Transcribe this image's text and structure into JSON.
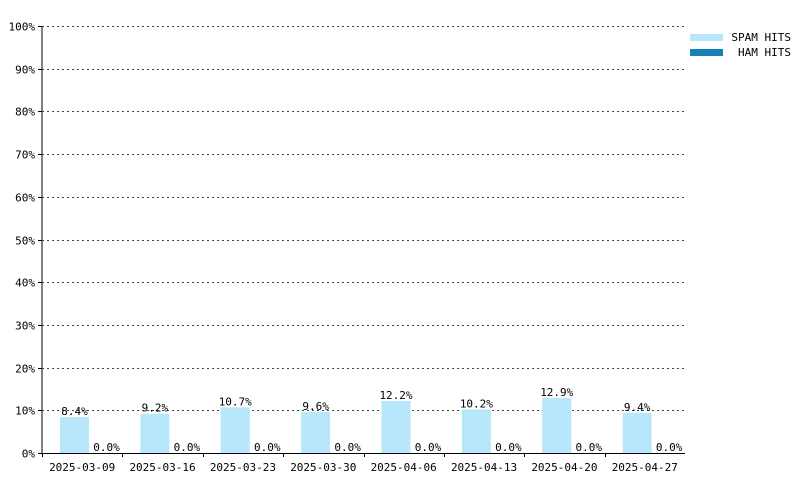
{
  "chart_data": {
    "type": "bar",
    "categories": [
      "2025-03-09",
      "2025-03-16",
      "2025-03-23",
      "2025-03-30",
      "2025-04-06",
      "2025-04-13",
      "2025-04-20",
      "2025-04-27"
    ],
    "series": [
      {
        "name": "SPAM HITS",
        "color": "#b8e6fb",
        "values": [
          8.4,
          9.2,
          10.7,
          9.6,
          12.2,
          10.2,
          12.9,
          9.4
        ],
        "labels": [
          "8.4%",
          "9.2%",
          "10.7%",
          "9.6%",
          "12.2%",
          "10.2%",
          "12.9%",
          "9.4%"
        ]
      },
      {
        "name": "HAM HITS",
        "color": "#1480b8",
        "values": [
          0,
          0,
          0,
          0,
          0,
          0,
          0,
          0
        ],
        "labels": [
          "0.0%",
          "0.0%",
          "0.0%",
          "0.0%",
          "0.0%",
          "0.0%",
          "0.0%",
          "0.0%"
        ]
      }
    ],
    "yticks": [
      "0%",
      "10%",
      "20%",
      "30%",
      "40%",
      "50%",
      "60%",
      "70%",
      "80%",
      "90%",
      "100%"
    ],
    "ylim": [
      0,
      100
    ],
    "grid": true,
    "legend_position": "top-right"
  }
}
